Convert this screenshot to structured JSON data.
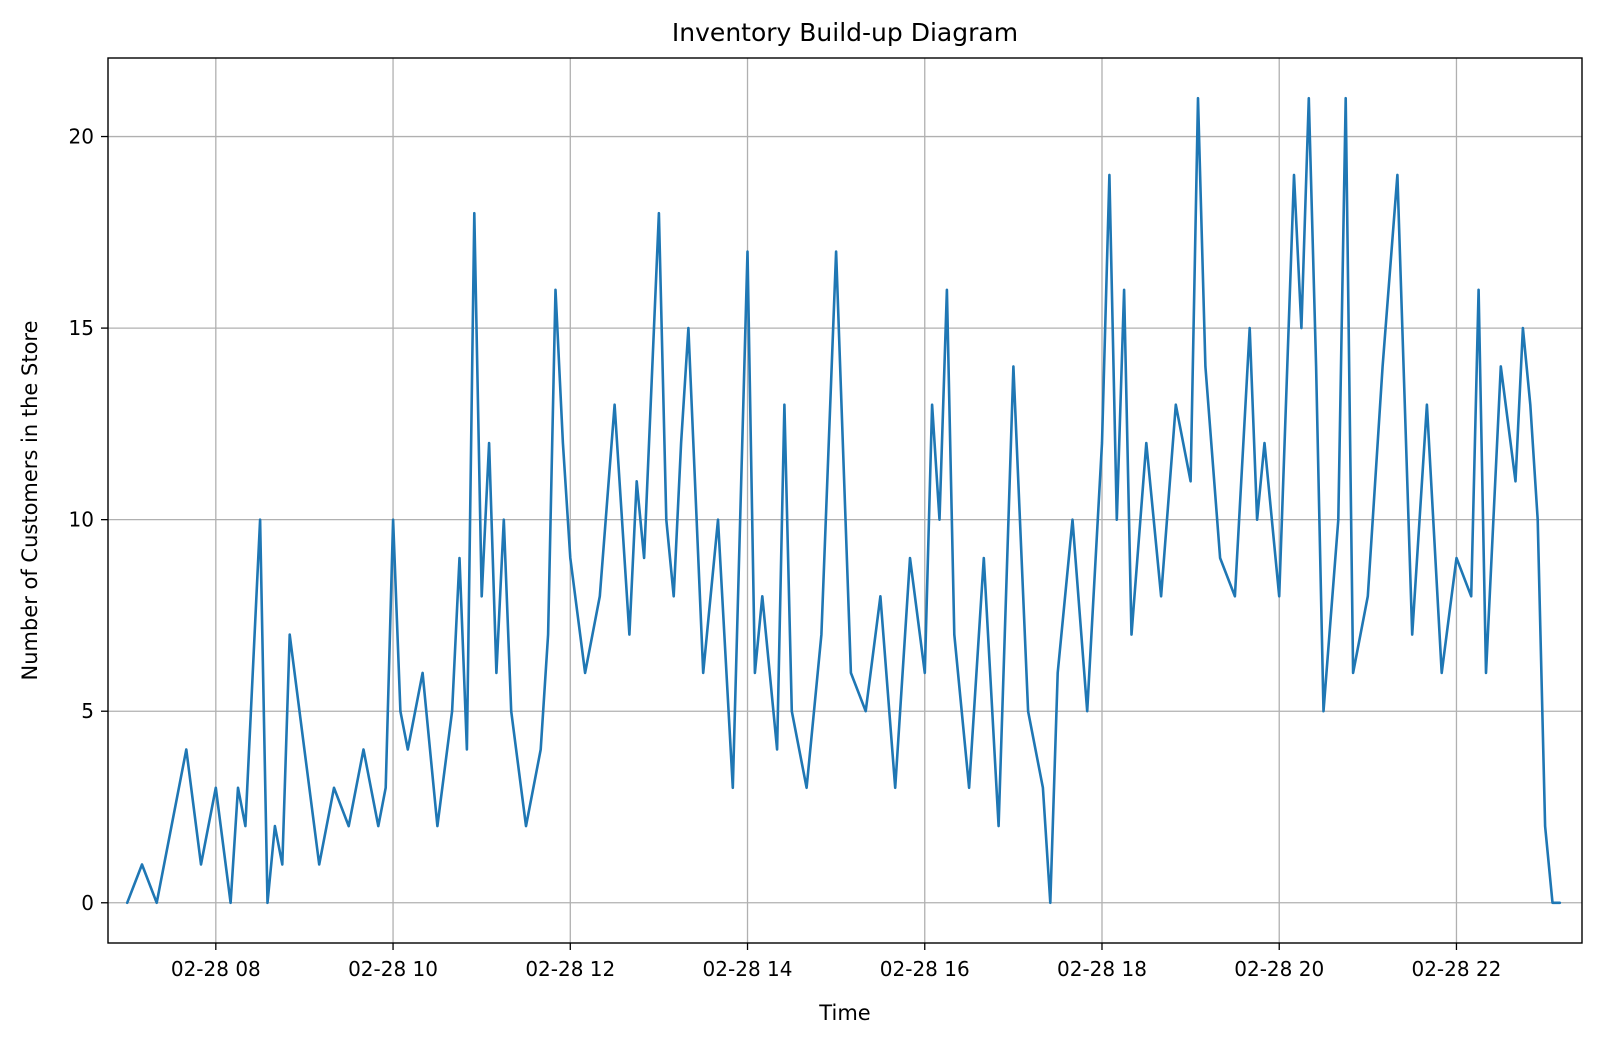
{
  "chart_data": {
    "type": "line",
    "title": "Inventory Build-up Diagram",
    "xlabel": "Time",
    "ylabel": "Number of Customers in the Store",
    "x_ticks": [
      "02-28 08",
      "02-28 10",
      "02-28 12",
      "02-28 14",
      "02-28 16",
      "02-28 18",
      "02-28 20",
      "02-28 22"
    ],
    "y_ticks": [
      "0",
      "5",
      "10",
      "15",
      "20"
    ],
    "xlim": [
      "02-28 06:47",
      "02-28 23:25"
    ],
    "ylim": [
      -1.05,
      22.05
    ],
    "grid": true,
    "colors": {
      "series": "#1f77b4"
    },
    "series": [
      {
        "x": [
          "02-28 07:00",
          "02-28 07:10",
          "02-28 07:20",
          "02-28 07:30",
          "02-28 07:40",
          "02-28 07:50",
          "02-28 08:00",
          "02-28 08:10",
          "02-28 08:15",
          "02-28 08:20",
          "02-28 08:30",
          "02-28 08:35",
          "02-28 08:40",
          "02-28 08:45",
          "02-28 08:50",
          "02-28 09:00",
          "02-28 09:10",
          "02-28 09:20",
          "02-28 09:30",
          "02-28 09:40",
          "02-28 09:50",
          "02-28 09:55",
          "02-28 10:00",
          "02-28 10:05",
          "02-28 10:10",
          "02-28 10:20",
          "02-28 10:30",
          "02-28 10:40",
          "02-28 10:45",
          "02-28 10:50",
          "02-28 10:55",
          "02-28 11:00",
          "02-28 11:05",
          "02-28 11:10",
          "02-28 11:15",
          "02-28 11:20",
          "02-28 11:30",
          "02-28 11:40",
          "02-28 11:45",
          "02-28 11:50",
          "02-28 11:55",
          "02-28 12:00",
          "02-28 12:10",
          "02-28 12:20",
          "02-28 12:30",
          "02-28 12:40",
          "02-28 12:45",
          "02-28 12:50",
          "02-28 13:00",
          "02-28 13:05",
          "02-28 13:10",
          "02-28 13:15",
          "02-28 13:20",
          "02-28 13:30",
          "02-28 13:40",
          "02-28 13:50",
          "02-28 14:00",
          "02-28 14:05",
          "02-28 14:10",
          "02-28 14:20",
          "02-28 14:25",
          "02-28 14:30",
          "02-28 14:40",
          "02-28 14:50",
          "02-28 15:00",
          "02-28 15:10",
          "02-28 15:20",
          "02-28 15:30",
          "02-28 15:40",
          "02-28 15:50",
          "02-28 16:00",
          "02-28 16:05",
          "02-28 16:10",
          "02-28 16:15",
          "02-28 16:20",
          "02-28 16:30",
          "02-28 16:40",
          "02-28 16:50",
          "02-28 17:00",
          "02-28 17:10",
          "02-28 17:20",
          "02-28 17:25",
          "02-28 17:30",
          "02-28 17:40",
          "02-28 17:50",
          "02-28 18:00",
          "02-28 18:05",
          "02-28 18:10",
          "02-28 18:15",
          "02-28 18:20",
          "02-28 18:30",
          "02-28 18:40",
          "02-28 18:50",
          "02-28 19:00",
          "02-28 19:05",
          "02-28 19:10",
          "02-28 19:20",
          "02-28 19:30",
          "02-28 19:40",
          "02-28 19:45",
          "02-28 19:50",
          "02-28 20:00",
          "02-28 20:10",
          "02-28 20:15",
          "02-28 20:20",
          "02-28 20:25",
          "02-28 20:30",
          "02-28 20:40",
          "02-28 20:45",
          "02-28 20:50",
          "02-28 21:00",
          "02-28 21:10",
          "02-28 21:20",
          "02-28 21:30",
          "02-28 21:40",
          "02-28 21:50",
          "02-28 22:00",
          "02-28 22:10",
          "02-28 22:15",
          "02-28 22:20",
          "02-28 22:30",
          "02-28 22:40",
          "02-28 22:45",
          "02-28 22:50",
          "02-28 22:55",
          "02-28 23:00",
          "02-28 23:05",
          "02-28 23:10"
        ],
        "y": [
          0,
          1,
          0,
          2,
          4,
          1,
          3,
          0,
          3,
          2,
          10,
          0,
          2,
          1,
          7,
          4,
          1,
          3,
          2,
          4,
          2,
          3,
          10,
          5,
          4,
          6,
          2,
          5,
          9,
          4,
          18,
          8,
          12,
          6,
          10,
          5,
          2,
          4,
          7,
          16,
          12,
          9,
          6,
          8,
          13,
          7,
          11,
          9,
          18,
          10,
          8,
          12,
          15,
          6,
          10,
          3,
          17,
          6,
          8,
          4,
          13,
          5,
          3,
          7,
          17,
          6,
          5,
          8,
          3,
          9,
          6,
          13,
          10,
          16,
          7,
          3,
          9,
          2,
          14,
          5,
          3,
          0,
          6,
          10,
          5,
          12,
          19,
          10,
          16,
          7,
          12,
          8,
          13,
          11,
          21,
          14,
          9,
          8,
          15,
          10,
          12,
          8,
          19,
          15,
          21,
          14,
          5,
          10,
          21,
          6,
          8,
          14,
          19,
          7,
          13,
          6,
          9,
          8,
          16,
          6,
          14,
          11,
          15,
          13,
          10,
          2,
          0,
          0
        ],
        "color": "#1f77b4"
      }
    ]
  }
}
